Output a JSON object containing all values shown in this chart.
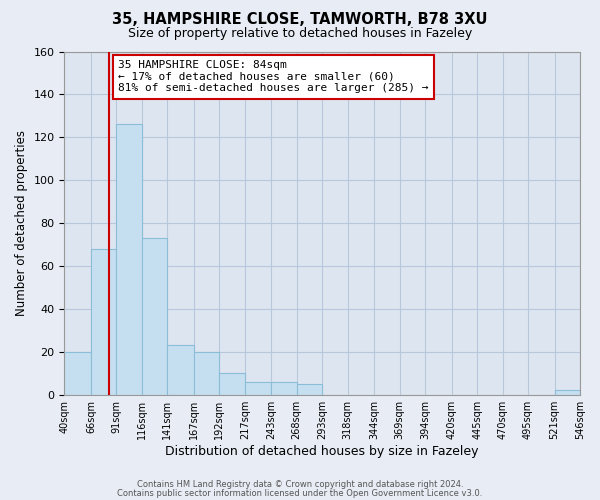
{
  "title1": "35, HAMPSHIRE CLOSE, TAMWORTH, B78 3XU",
  "title2": "Size of property relative to detached houses in Fazeley",
  "xlabel": "Distribution of detached houses by size in Fazeley",
  "ylabel": "Number of detached properties",
  "bar_edges": [
    40,
    66,
    91,
    116,
    141,
    167,
    192,
    217,
    243,
    268,
    293,
    318,
    344,
    369,
    394,
    420,
    445,
    470,
    495,
    521,
    546
  ],
  "bar_heights": [
    20,
    68,
    126,
    73,
    23,
    20,
    10,
    6,
    6,
    5,
    0,
    0,
    0,
    0,
    0,
    0,
    0,
    0,
    0,
    2
  ],
  "bar_color": "#c5dff0",
  "bar_edgecolor": "#8bbdd9",
  "ylim": [
    0,
    160
  ],
  "yticks": [
    0,
    20,
    40,
    60,
    80,
    100,
    120,
    140,
    160
  ],
  "vline_x": 84,
  "vline_color": "#cc0000",
  "ann_line1": "35 HAMPSHIRE CLOSE: 84sqm",
  "ann_line2": "← 17% of detached houses are smaller (60)",
  "ann_line3": "81% of semi-detached houses are larger (285) →",
  "footer1": "Contains HM Land Registry data © Crown copyright and database right 2024.",
  "footer2": "Contains public sector information licensed under the Open Government Licence v3.0.",
  "bg_color": "#e8edf5",
  "plot_bg_color": "#dde5f0",
  "grid_color": "#b8c8dc"
}
